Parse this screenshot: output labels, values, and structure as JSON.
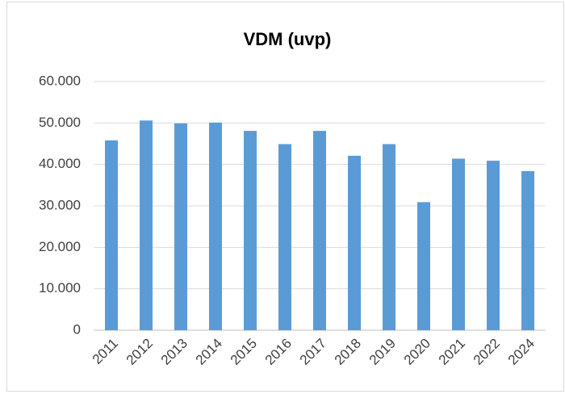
{
  "chart_data": {
    "type": "bar",
    "title": "VDM (uvp)",
    "categories": [
      "2011",
      "2012",
      "2013",
      "2014",
      "2015",
      "2016",
      "2017",
      "2018",
      "2019",
      "2020",
      "2021",
      "2022",
      "2024"
    ],
    "values": [
      45800,
      50600,
      49900,
      50100,
      48100,
      44900,
      48100,
      42100,
      44900,
      30900,
      41400,
      40900,
      38400
    ],
    "color": "#5b9bd5",
    "ylim": [
      0,
      60000
    ],
    "yticks": [
      0,
      {
        "value": 10000,
        "label": "10.000"
      },
      {
        "value": 20000,
        "label": "20.000"
      },
      {
        "value": 30000,
        "label": "30.000"
      },
      {
        "value": 40000,
        "label": "40.000"
      },
      {
        "value": 50000,
        "label": "50.000"
      },
      {
        "value": 60000,
        "label": "60.000"
      }
    ],
    "grid": true
  }
}
